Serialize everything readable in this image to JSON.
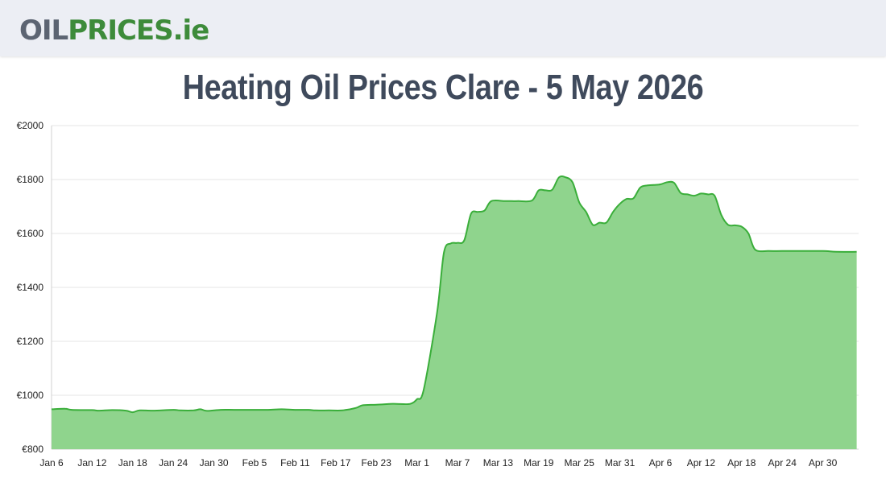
{
  "header": {
    "logo_part1": "OIL",
    "logo_part2": "PRICES",
    "logo_part3": ".ie"
  },
  "page_title": "Heating Oil Prices Clare - 5 May 2026",
  "colors": {
    "line": "#3aae3a",
    "fill": "#8fd48d",
    "grid": "#e6e6e6",
    "title": "#3f4a5c",
    "logo_grey": "#5c6472",
    "logo_green": "#3d8b3a"
  },
  "chart_data": {
    "type": "area",
    "title": "Heating Oil Prices Clare - 5 May 2026",
    "xlabel": "",
    "ylabel": "",
    "ylim": [
      800,
      2000
    ],
    "y_ticks": [
      800,
      1000,
      1200,
      1400,
      1600,
      1800,
      2000
    ],
    "y_tick_labels": [
      "€800",
      "€1000",
      "€1200",
      "€1400",
      "€1600",
      "€1800",
      "€2000"
    ],
    "x_tick_labels": [
      "Jan 6",
      "Jan 12",
      "Jan 18",
      "Jan 24",
      "Jan 30",
      "Feb 5",
      "Feb 11",
      "Feb 17",
      "Feb 23",
      "Mar 1",
      "Mar 7",
      "Mar 13",
      "Mar 19",
      "Mar 25",
      "Mar 31",
      "Apr 6",
      "Apr 12",
      "Apr 18",
      "Apr 24",
      "Apr 30"
    ],
    "grid": true,
    "legend": "none",
    "series": [
      {
        "points": [
          [
            "Jan 6",
            948
          ],
          [
            "Jan 8",
            950
          ],
          [
            "Jan 9",
            946
          ],
          [
            "Jan 12",
            945
          ],
          [
            "Jan 13",
            943
          ],
          [
            "Jan 15",
            945
          ],
          [
            "Jan 17",
            943
          ],
          [
            "Jan 18",
            937
          ],
          [
            "Jan 19",
            944
          ],
          [
            "Jan 21",
            943
          ],
          [
            "Jan 24",
            946
          ],
          [
            "Jan 25",
            944
          ],
          [
            "Jan 27",
            944
          ],
          [
            "Jan 28",
            948
          ],
          [
            "Jan 29",
            942
          ],
          [
            "Jan 31",
            946
          ],
          [
            "Feb 2",
            946
          ],
          [
            "Feb 5",
            946
          ],
          [
            "Feb 7",
            946
          ],
          [
            "Feb 9",
            948
          ],
          [
            "Feb 11",
            946
          ],
          [
            "Feb 13",
            946
          ],
          [
            "Feb 14",
            944
          ],
          [
            "Feb 16",
            944
          ],
          [
            "Feb 18",
            944
          ],
          [
            "Feb 20",
            953
          ],
          [
            "Feb 21",
            963
          ],
          [
            "Feb 23",
            965
          ],
          [
            "Feb 25",
            968
          ],
          [
            "Feb 26",
            968
          ],
          [
            "Feb 28",
            968
          ],
          [
            "Mar 1",
            985
          ],
          [
            "Mar 2",
            1020
          ],
          [
            "Mar 4",
            1310
          ],
          [
            "Mar 5",
            1530
          ],
          [
            "Mar 6",
            1563
          ],
          [
            "Mar 7",
            1565
          ],
          [
            "Mar 8",
            1575
          ],
          [
            "Mar 9",
            1673
          ],
          [
            "Mar 10",
            1680
          ],
          [
            "Mar 11",
            1685
          ],
          [
            "Mar 12",
            1720
          ],
          [
            "Mar 14",
            1720
          ],
          [
            "Mar 15",
            1720
          ],
          [
            "Mar 16",
            1720
          ],
          [
            "Mar 18",
            1722
          ],
          [
            "Mar 19",
            1760
          ],
          [
            "Mar 20",
            1760
          ],
          [
            "Mar 21",
            1762
          ],
          [
            "Mar 22",
            1808
          ],
          [
            "Mar 23",
            1808
          ],
          [
            "Mar 24",
            1790
          ],
          [
            "Mar 25",
            1715
          ],
          [
            "Mar 26",
            1680
          ],
          [
            "Mar 27",
            1632
          ],
          [
            "Mar 28",
            1640
          ],
          [
            "Mar 29",
            1640
          ],
          [
            "Mar 30",
            1680
          ],
          [
            "Mar 31",
            1710
          ],
          [
            "Apr 1",
            1728
          ],
          [
            "Apr 2",
            1730
          ],
          [
            "Apr 3",
            1770
          ],
          [
            "Apr 4",
            1778
          ],
          [
            "Apr 5",
            1780
          ],
          [
            "Apr 6",
            1782
          ],
          [
            "Apr 7",
            1790
          ],
          [
            "Apr 8",
            1788
          ],
          [
            "Apr 9",
            1750
          ],
          [
            "Apr 10",
            1745
          ],
          [
            "Apr 11",
            1740
          ],
          [
            "Apr 12",
            1748
          ],
          [
            "Apr 13",
            1745
          ],
          [
            "Apr 14",
            1740
          ],
          [
            "Apr 15",
            1668
          ],
          [
            "Apr 16",
            1632
          ],
          [
            "Apr 17",
            1630
          ],
          [
            "Apr 18",
            1625
          ],
          [
            "Apr 19",
            1600
          ],
          [
            "Apr 20",
            1540
          ],
          [
            "Apr 22",
            1535
          ],
          [
            "Apr 24",
            1535
          ],
          [
            "Apr 27",
            1535
          ],
          [
            "Apr 30",
            1535
          ],
          [
            "May 2",
            1532
          ],
          [
            "May 5",
            1532
          ]
        ]
      }
    ]
  }
}
